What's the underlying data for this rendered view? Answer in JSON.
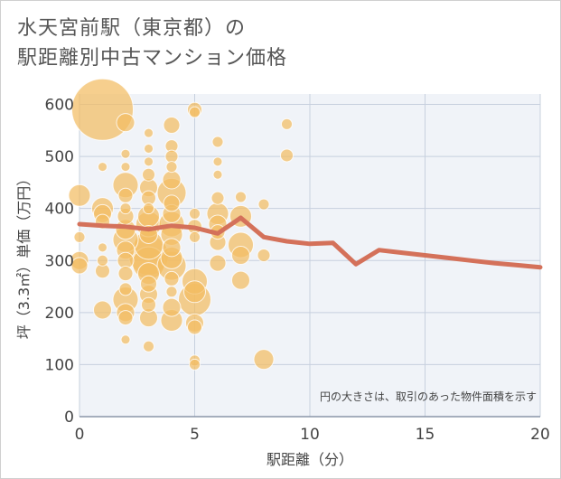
{
  "title_lines": [
    "水天宮前駅（東京都）の",
    "駅距離別中古マンション価格"
  ],
  "colors": {
    "bubble_fill": "#f2bd63",
    "bubble_stroke": "#ffffff",
    "line": "#d4715a",
    "plot_bg": "#f0f3f8",
    "grid": "#c7d0de",
    "text": "#444444"
  },
  "chart_data": {
    "type": "scatter",
    "xlabel": "駅距離（分）",
    "ylabel": "坪（3.3㎡）単価（万円）",
    "note": "円の大きさは、取引のあった物件面積を示す",
    "xlim": [
      0,
      20
    ],
    "ylim": [
      0,
      620
    ],
    "xticks": [
      0,
      5,
      10,
      15,
      20
    ],
    "yticks": [
      0,
      100,
      200,
      300,
      400,
      500,
      600
    ],
    "grid": true,
    "legend": "none",
    "series": [
      {
        "kind": "bubble",
        "points": [
          {
            "x": 0,
            "y": 425,
            "s": 12
          },
          {
            "x": 0,
            "y": 300,
            "s": 10
          },
          {
            "x": 0,
            "y": 290,
            "s": 9
          },
          {
            "x": 0,
            "y": 345,
            "s": 6
          },
          {
            "x": 1,
            "y": 590,
            "s": 34
          },
          {
            "x": 1,
            "y": 480,
            "s": 5
          },
          {
            "x": 1,
            "y": 400,
            "s": 12
          },
          {
            "x": 1,
            "y": 390,
            "s": 10
          },
          {
            "x": 1,
            "y": 375,
            "s": 8
          },
          {
            "x": 1,
            "y": 325,
            "s": 5
          },
          {
            "x": 1,
            "y": 300,
            "s": 6
          },
          {
            "x": 1,
            "y": 280,
            "s": 8
          },
          {
            "x": 1,
            "y": 205,
            "s": 10
          },
          {
            "x": 2,
            "y": 565,
            "s": 10
          },
          {
            "x": 2,
            "y": 505,
            "s": 5
          },
          {
            "x": 2,
            "y": 480,
            "s": 5
          },
          {
            "x": 2,
            "y": 445,
            "s": 14
          },
          {
            "x": 2,
            "y": 425,
            "s": 8
          },
          {
            "x": 2,
            "y": 400,
            "s": 6
          },
          {
            "x": 2,
            "y": 385,
            "s": 9
          },
          {
            "x": 2,
            "y": 360,
            "s": 11
          },
          {
            "x": 2,
            "y": 340,
            "s": 14
          },
          {
            "x": 2,
            "y": 320,
            "s": 10
          },
          {
            "x": 2,
            "y": 300,
            "s": 9
          },
          {
            "x": 2,
            "y": 275,
            "s": 8
          },
          {
            "x": 2,
            "y": 245,
            "s": 7
          },
          {
            "x": 2,
            "y": 225,
            "s": 14
          },
          {
            "x": 2,
            "y": 200,
            "s": 10
          },
          {
            "x": 2,
            "y": 190,
            "s": 8
          },
          {
            "x": 2,
            "y": 148,
            "s": 5
          },
          {
            "x": 3,
            "y": 545,
            "s": 5
          },
          {
            "x": 3,
            "y": 515,
            "s": 5
          },
          {
            "x": 3,
            "y": 490,
            "s": 5
          },
          {
            "x": 3,
            "y": 465,
            "s": 7
          },
          {
            "x": 3,
            "y": 440,
            "s": 10
          },
          {
            "x": 3,
            "y": 420,
            "s": 8
          },
          {
            "x": 3,
            "y": 400,
            "s": 6
          },
          {
            "x": 3,
            "y": 385,
            "s": 12
          },
          {
            "x": 3,
            "y": 370,
            "s": 14
          },
          {
            "x": 3,
            "y": 350,
            "s": 10
          },
          {
            "x": 3,
            "y": 330,
            "s": 16
          },
          {
            "x": 3,
            "y": 310,
            "s": 22
          },
          {
            "x": 3,
            "y": 295,
            "s": 18
          },
          {
            "x": 3,
            "y": 275,
            "s": 12
          },
          {
            "x": 3,
            "y": 255,
            "s": 9
          },
          {
            "x": 3,
            "y": 235,
            "s": 10
          },
          {
            "x": 3,
            "y": 215,
            "s": 8
          },
          {
            "x": 3,
            "y": 190,
            "s": 10
          },
          {
            "x": 3,
            "y": 135,
            "s": 6
          },
          {
            "x": 4,
            "y": 560,
            "s": 9
          },
          {
            "x": 4,
            "y": 520,
            "s": 7
          },
          {
            "x": 4,
            "y": 500,
            "s": 7
          },
          {
            "x": 4,
            "y": 480,
            "s": 6
          },
          {
            "x": 4,
            "y": 455,
            "s": 10
          },
          {
            "x": 4,
            "y": 430,
            "s": 16
          },
          {
            "x": 4,
            "y": 410,
            "s": 9
          },
          {
            "x": 4,
            "y": 390,
            "s": 10
          },
          {
            "x": 4,
            "y": 370,
            "s": 14
          },
          {
            "x": 4,
            "y": 350,
            "s": 12
          },
          {
            "x": 4,
            "y": 325,
            "s": 10
          },
          {
            "x": 4,
            "y": 305,
            "s": 12
          },
          {
            "x": 4,
            "y": 290,
            "s": 16
          },
          {
            "x": 4,
            "y": 265,
            "s": 8
          },
          {
            "x": 4,
            "y": 240,
            "s": 6
          },
          {
            "x": 4,
            "y": 210,
            "s": 10
          },
          {
            "x": 4,
            "y": 185,
            "s": 12
          },
          {
            "x": 5,
            "y": 590,
            "s": 8
          },
          {
            "x": 5,
            "y": 585,
            "s": 6
          },
          {
            "x": 5,
            "y": 390,
            "s": 6
          },
          {
            "x": 5,
            "y": 365,
            "s": 8
          },
          {
            "x": 5,
            "y": 345,
            "s": 6
          },
          {
            "x": 5,
            "y": 260,
            "s": 14
          },
          {
            "x": 5,
            "y": 240,
            "s": 12
          },
          {
            "x": 5,
            "y": 225,
            "s": 18
          },
          {
            "x": 5,
            "y": 180,
            "s": 10
          },
          {
            "x": 5,
            "y": 172,
            "s": 8
          },
          {
            "x": 5,
            "y": 108,
            "s": 6
          },
          {
            "x": 5,
            "y": 100,
            "s": 6
          },
          {
            "x": 6,
            "y": 528,
            "s": 6
          },
          {
            "x": 6,
            "y": 490,
            "s": 5
          },
          {
            "x": 6,
            "y": 465,
            "s": 5
          },
          {
            "x": 6,
            "y": 420,
            "s": 7
          },
          {
            "x": 6,
            "y": 390,
            "s": 12
          },
          {
            "x": 6,
            "y": 370,
            "s": 10
          },
          {
            "x": 6,
            "y": 355,
            "s": 8
          },
          {
            "x": 6,
            "y": 335,
            "s": 9
          },
          {
            "x": 6,
            "y": 295,
            "s": 9
          },
          {
            "x": 7,
            "y": 422,
            "s": 6
          },
          {
            "x": 7,
            "y": 385,
            "s": 12
          },
          {
            "x": 7,
            "y": 330,
            "s": 14
          },
          {
            "x": 7,
            "y": 310,
            "s": 10
          },
          {
            "x": 7,
            "y": 262,
            "s": 10
          },
          {
            "x": 8,
            "y": 408,
            "s": 6
          },
          {
            "x": 8,
            "y": 310,
            "s": 7
          },
          {
            "x": 8,
            "y": 110,
            "s": 11
          },
          {
            "x": 9,
            "y": 562,
            "s": 6
          },
          {
            "x": 9,
            "y": 502,
            "s": 7
          }
        ]
      },
      {
        "kind": "line",
        "x": [
          0,
          1,
          2,
          3,
          4,
          5,
          6,
          7,
          8,
          9,
          10,
          11,
          12,
          13,
          14,
          15,
          16,
          17,
          18,
          19,
          20
        ],
        "y": [
          370,
          367,
          365,
          360,
          367,
          363,
          352,
          382,
          345,
          337,
          332,
          334,
          293,
          320,
          315,
          310,
          305,
          300,
          295,
          291,
          287
        ]
      }
    ]
  }
}
